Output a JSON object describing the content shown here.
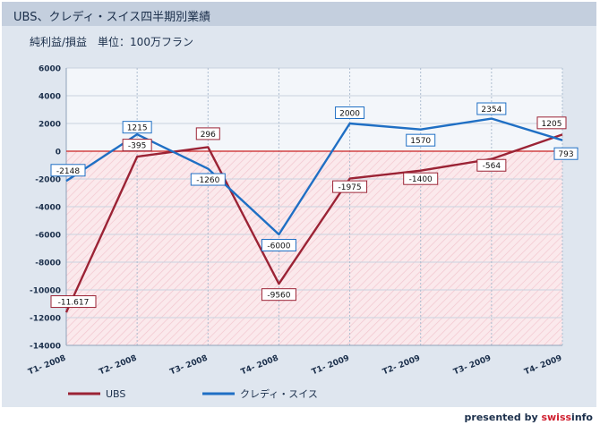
{
  "header": {
    "title": "UBS、クレディ・スイス四半期別業績",
    "subtitle": "純利益/損益　単位：100万フラン"
  },
  "credit": {
    "prefix": "presented by",
    "brand_a": "swiss",
    "brand_b": "info"
  },
  "colors": {
    "ubs": "#9b2335",
    "cs": "#1f6fc4",
    "zero_line": "#cc2222",
    "negative_band": "#fbe9ec",
    "positive_band": "#f3f6fa"
  },
  "chart_data": {
    "type": "line",
    "categories": [
      "T1- 2008",
      "T2- 2008",
      "T3- 2008",
      "T4- 2008",
      "T1- 2009",
      "T2- 2009",
      "T3- 2009",
      "T4- 2009"
    ],
    "ylim": [
      -14000,
      6000
    ],
    "yticks": [
      6000,
      4000,
      2000,
      0,
      -2000,
      -4000,
      -6000,
      -8000,
      -10000,
      -12000,
      -14000
    ],
    "grid": true,
    "legend_position": "bottom",
    "series": [
      {
        "name": "UBS",
        "values": [
          -11617,
          -395,
          296,
          -9560,
          -1975,
          -1400,
          -564,
          1205
        ],
        "labels": [
          "-11.617",
          "-395",
          "296",
          "-9560",
          "-1975",
          "-1400",
          "-564",
          "1205"
        ]
      },
      {
        "name": "クレディ・スイス",
        "values": [
          -2148,
          1215,
          -1260,
          -6000,
          2000,
          1570,
          2354,
          793
        ],
        "labels": [
          "-2148",
          "1215",
          "-1260",
          "-6000",
          "2000",
          "1570",
          "2354",
          "793"
        ]
      }
    ]
  }
}
